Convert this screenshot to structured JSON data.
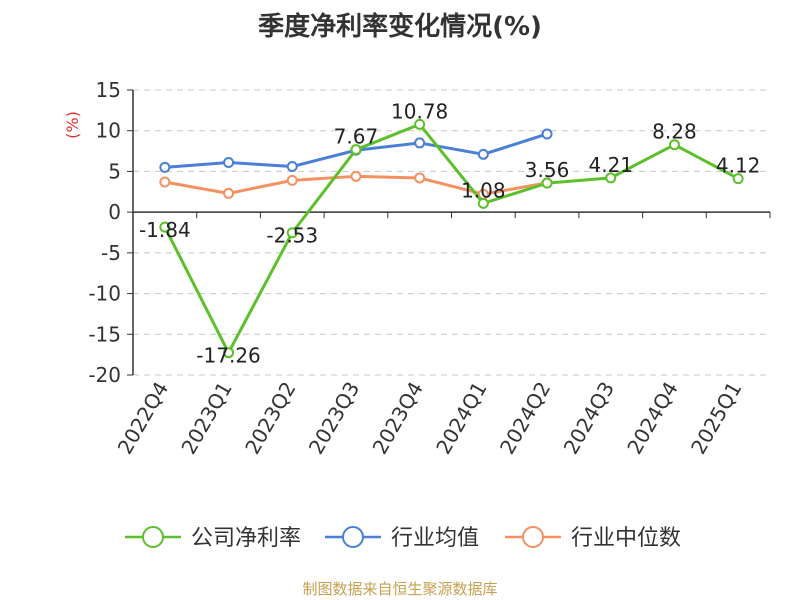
{
  "title": "季度净利率变化情况(%)",
  "source": "制图数据来自恒生聚源数据库",
  "colors": {
    "company": "#5cc02a",
    "industry_avg": "#4a7fd8",
    "industry_median": "#f59060",
    "unit": "#e03030"
  },
  "chart_data": {
    "type": "line",
    "title": "季度净利率变化情况(%)",
    "ylabel": "(%)",
    "xlabel": "",
    "ylim": [
      -20,
      15
    ],
    "yticks": [
      15,
      10,
      5,
      0,
      -5,
      -10,
      -15,
      -20
    ],
    "grid": true,
    "legend": "bottom",
    "categories": [
      "2022Q4",
      "2023Q1",
      "2023Q2",
      "2023Q3",
      "2023Q4",
      "2024Q1",
      "2024Q2",
      "2024Q3",
      "2024Q4",
      "2025Q1"
    ],
    "series": [
      {
        "name": "公司净利率",
        "color": "#5cc02a",
        "values": [
          -1.84,
          -17.26,
          -2.53,
          7.67,
          10.78,
          1.08,
          3.56,
          4.21,
          8.28,
          4.12
        ],
        "labels": [
          "-1.84",
          "-17.26",
          "-2.53",
          "7.67",
          "10.78",
          "1.08",
          "3.56",
          "4.21",
          "8.28",
          "4.12"
        ]
      },
      {
        "name": "行业均值",
        "color": "#4a7fd8",
        "values": [
          5.5,
          6.1,
          5.6,
          7.6,
          8.5,
          7.1,
          9.6,
          null,
          null,
          null
        ]
      },
      {
        "name": "行业中位数",
        "color": "#f59060",
        "values": [
          3.7,
          2.3,
          3.9,
          4.4,
          4.2,
          2.2,
          3.6,
          null,
          null,
          null
        ]
      }
    ]
  }
}
